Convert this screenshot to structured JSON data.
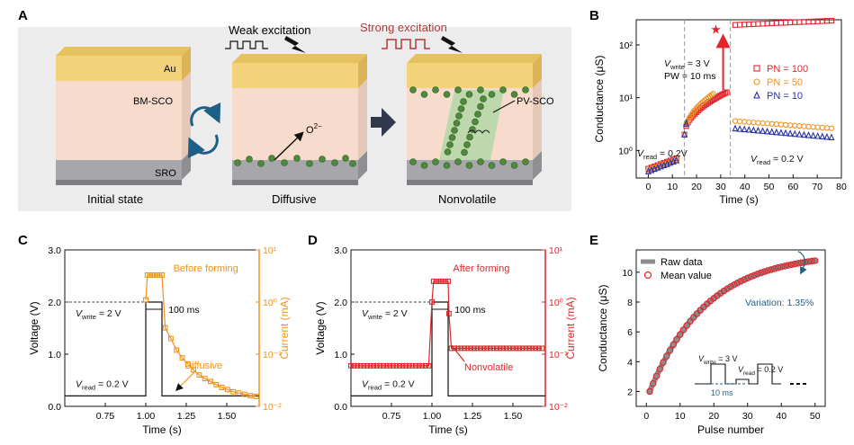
{
  "panels": {
    "A": {
      "letter": "A",
      "weak_label": "Weak excitation",
      "strong_label": "Strong excitation",
      "layer_top": "Au",
      "layer_mid": "BM-SCO",
      "layer_bottom": "SRO",
      "oxygen_label": "O",
      "oxygen_sup": "2−",
      "pv_label": "PV-SCO",
      "captions": [
        "Initial state",
        "Diffusive",
        "Nonvolatile"
      ]
    },
    "B": {
      "letter": "B"
    },
    "C": {
      "letter": "C"
    },
    "D": {
      "letter": "D"
    },
    "E": {
      "letter": "E"
    }
  },
  "colors": {
    "orange": "#f0921d",
    "red": "#e0262b",
    "blue": "#2431a6",
    "grey": "#8c8c8c",
    "teal": "#1d5f86",
    "au": "#f2d27a",
    "sco": "#f7dccd",
    "sro": "#a7a7ab",
    "green": "#4f8a3c"
  },
  "chart_data": [
    {
      "panel": "B",
      "type": "scatter",
      "xlabel": "Time (s)",
      "ylabel": "Conductance (μS)",
      "xlim": [
        -5,
        80
      ],
      "ylim": [
        0.3,
        300
      ],
      "yscale": "log",
      "xticks": [
        "0",
        "10",
        "20",
        "30",
        "40",
        "50",
        "60",
        "70",
        "80"
      ],
      "yticks": [
        "10⁰",
        "10¹",
        "10²"
      ],
      "annotations": {
        "vwrite": "V",
        "vwrite_sub": "write",
        "vwrite_rest": " = 3 V",
        "pw": "PW = 10 ms",
        "vread_left": "V",
        "vread_left_sub": "read",
        "vread_left_rest": " = 0.2V",
        "vread_right": "V",
        "vread_right_sub": "read",
        "vread_right_rest": " = 0.2 V"
      },
      "series": [
        {
          "name": "PN = 100",
          "marker": "square",
          "color": "#e0262b",
          "read1": [
            0.45,
            0.65,
            0.75
          ],
          "write_end": 13,
          "jump": 200,
          "read2": [
            240,
            290
          ]
        },
        {
          "name": "PN = 50",
          "marker": "circle",
          "color": "#f0921d",
          "read1": [
            0.42,
            0.6,
            0.7
          ],
          "write_end": 12,
          "read2": [
            3.6,
            2.6
          ]
        },
        {
          "name": "PN = 10",
          "marker": "triangle",
          "color": "#2431a6",
          "read1": [
            0.4,
            0.58,
            0.68
          ],
          "write_end": 3.5,
          "read2": [
            2.6,
            1.75
          ]
        }
      ]
    },
    {
      "panel": "C",
      "type": "line",
      "xlabel": "Time (s)",
      "ylabel_left": "Voltage (V)",
      "ylabel_right": "Current (mA)",
      "xlim": [
        0.5,
        1.7
      ],
      "ylim_left": [
        0,
        3.0
      ],
      "ylim_right": [
        0.01,
        10
      ],
      "xticks": [
        "0.75",
        "1.00",
        "1.25",
        "1.50"
      ],
      "yticks_left": [
        "0.0",
        "1.0",
        "2.0",
        "3.0"
      ],
      "yticks_right": [
        "10⁻²",
        "10⁻¹",
        "10⁰",
        "10¹"
      ],
      "labels": {
        "forming": "Before forming",
        "state": "Diffusive",
        "width": "100 ms",
        "vwrite": "V",
        "vwrite_sub": "write",
        "vwrite_rest": " = 2 V",
        "vread": "V",
        "vread_sub": "read",
        "vread_rest": " = 0.2 V"
      },
      "voltage": {
        "read": 0.2,
        "write": 2.0,
        "pulse_start": 1.0,
        "pulse_end": 1.1
      },
      "current_peak": 3.3
    },
    {
      "panel": "D",
      "type": "line",
      "xlabel": "Time (s)",
      "ylabel_left": "Voltage (V)",
      "ylabel_right": "Current (mA)",
      "xlim": [
        0.5,
        1.7
      ],
      "ylim_left": [
        0,
        3.0
      ],
      "ylim_right": [
        0.01,
        10
      ],
      "xticks": [
        "0.75",
        "1.00",
        "1.25",
        "1.50"
      ],
      "yticks_left": [
        "0.0",
        "1.0",
        "2.0",
        "3.0"
      ],
      "yticks_right": [
        "10⁻²",
        "10⁻¹",
        "10⁰",
        "10¹"
      ],
      "labels": {
        "forming": "After forming",
        "state": "Nonvolatile",
        "width": "100 ms",
        "vwrite": "V",
        "vwrite_sub": "write",
        "vwrite_rest": " = 2 V",
        "vread": "V",
        "vread_sub": "read",
        "vread_rest": " = 0.2 V"
      },
      "voltage": {
        "read": 0.2,
        "write": 2.0,
        "pulse_start": 1.0,
        "pulse_end": 1.1
      },
      "current_base": 0.06,
      "current_peak": 2.5,
      "current_after": 0.13
    },
    {
      "panel": "E",
      "type": "scatter",
      "xlabel": "Pulse number",
      "ylabel": "Conductance (μS)",
      "xlim": [
        -3,
        53
      ],
      "ylim": [
        1,
        11.5
      ],
      "xticks": [
        "0",
        "10",
        "20",
        "30",
        "40",
        "50"
      ],
      "yticks": [
        "2",
        "4",
        "6",
        "8",
        "10"
      ],
      "legend": [
        "Raw data",
        "Mean value"
      ],
      "variation": "Variation: 1.35%",
      "inset": {
        "vwrite": "V",
        "vwrite_sub": "write",
        "vwrite_rest": " = 3 V",
        "vread": "V",
        "vread_sub": "read",
        "vread_rest": " = 0.2 V",
        "width": "10 ms"
      },
      "mean_curve": {
        "g0": 2.0,
        "gmax": 11.3,
        "tau": 17
      }
    }
  ]
}
